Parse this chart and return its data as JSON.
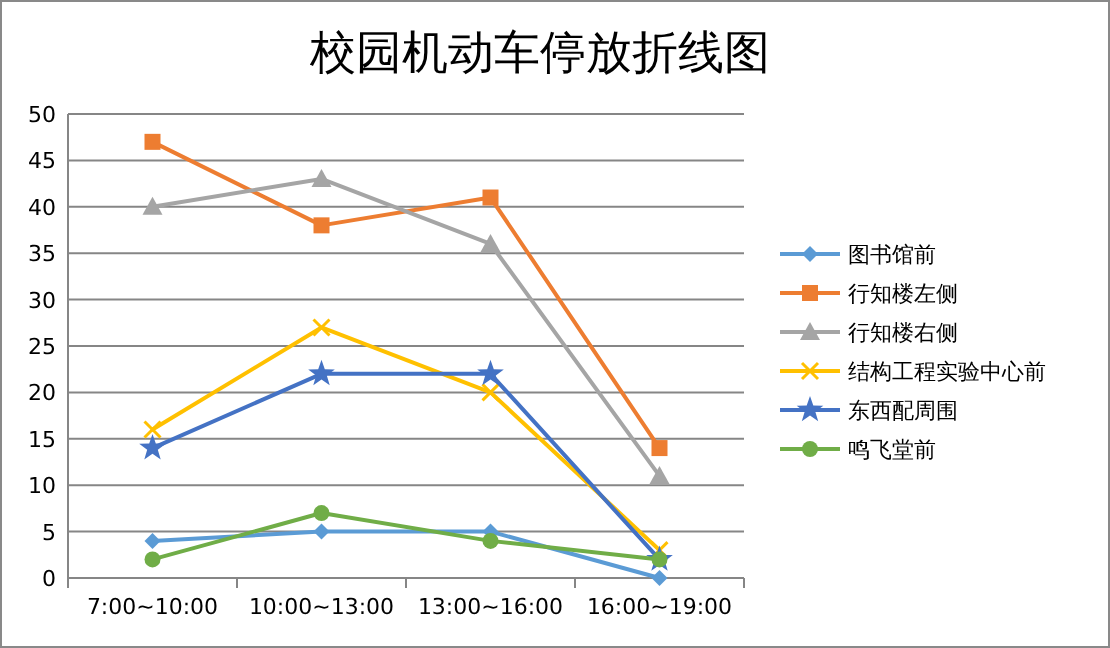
{
  "chart_data": {
    "type": "line",
    "title": "校园机动车停放折线图",
    "categories": [
      "7:00~10:00",
      "10:00~13:00",
      "13:00~16:00",
      "16:00~19:00"
    ],
    "ylim": [
      0,
      50
    ],
    "yticks": [
      0,
      5,
      10,
      15,
      20,
      25,
      30,
      35,
      40,
      45,
      50
    ],
    "grid": "y",
    "legend": "right",
    "series": [
      {
        "name": "图书馆前",
        "color": "#5b9bd5",
        "marker": "diamond",
        "values": [
          4,
          5,
          5,
          0
        ]
      },
      {
        "name": "行知楼左侧",
        "color": "#ed7d31",
        "marker": "square",
        "values": [
          47,
          38,
          41,
          14
        ]
      },
      {
        "name": "行知楼右侧",
        "color": "#a5a5a5",
        "marker": "triangle",
        "values": [
          40,
          43,
          36,
          11
        ]
      },
      {
        "name": "结构工程实验中心前",
        "color": "#ffc000",
        "marker": "cross",
        "values": [
          16,
          27,
          20,
          3
        ]
      },
      {
        "name": "东西配周围",
        "color": "#4472c4",
        "marker": "star",
        "values": [
          14,
          22,
          22,
          2
        ]
      },
      {
        "name": "鸣飞堂前",
        "color": "#70ad47",
        "marker": "circle",
        "values": [
          2,
          7,
          4,
          2
        ]
      }
    ]
  }
}
